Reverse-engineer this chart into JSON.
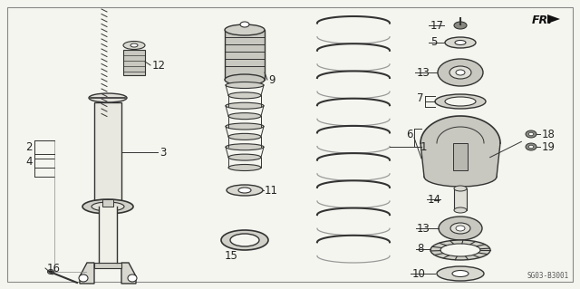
{
  "background_color": "#f5f5f0",
  "border_color": "#555555",
  "diagram_code": "SG03-B3001",
  "fr_label": "FR.",
  "line_color": "#333333",
  "text_color": "#222222",
  "part_font_size": 8.5,
  "figw": 6.4,
  "figh": 3.19,
  "dpi": 100
}
